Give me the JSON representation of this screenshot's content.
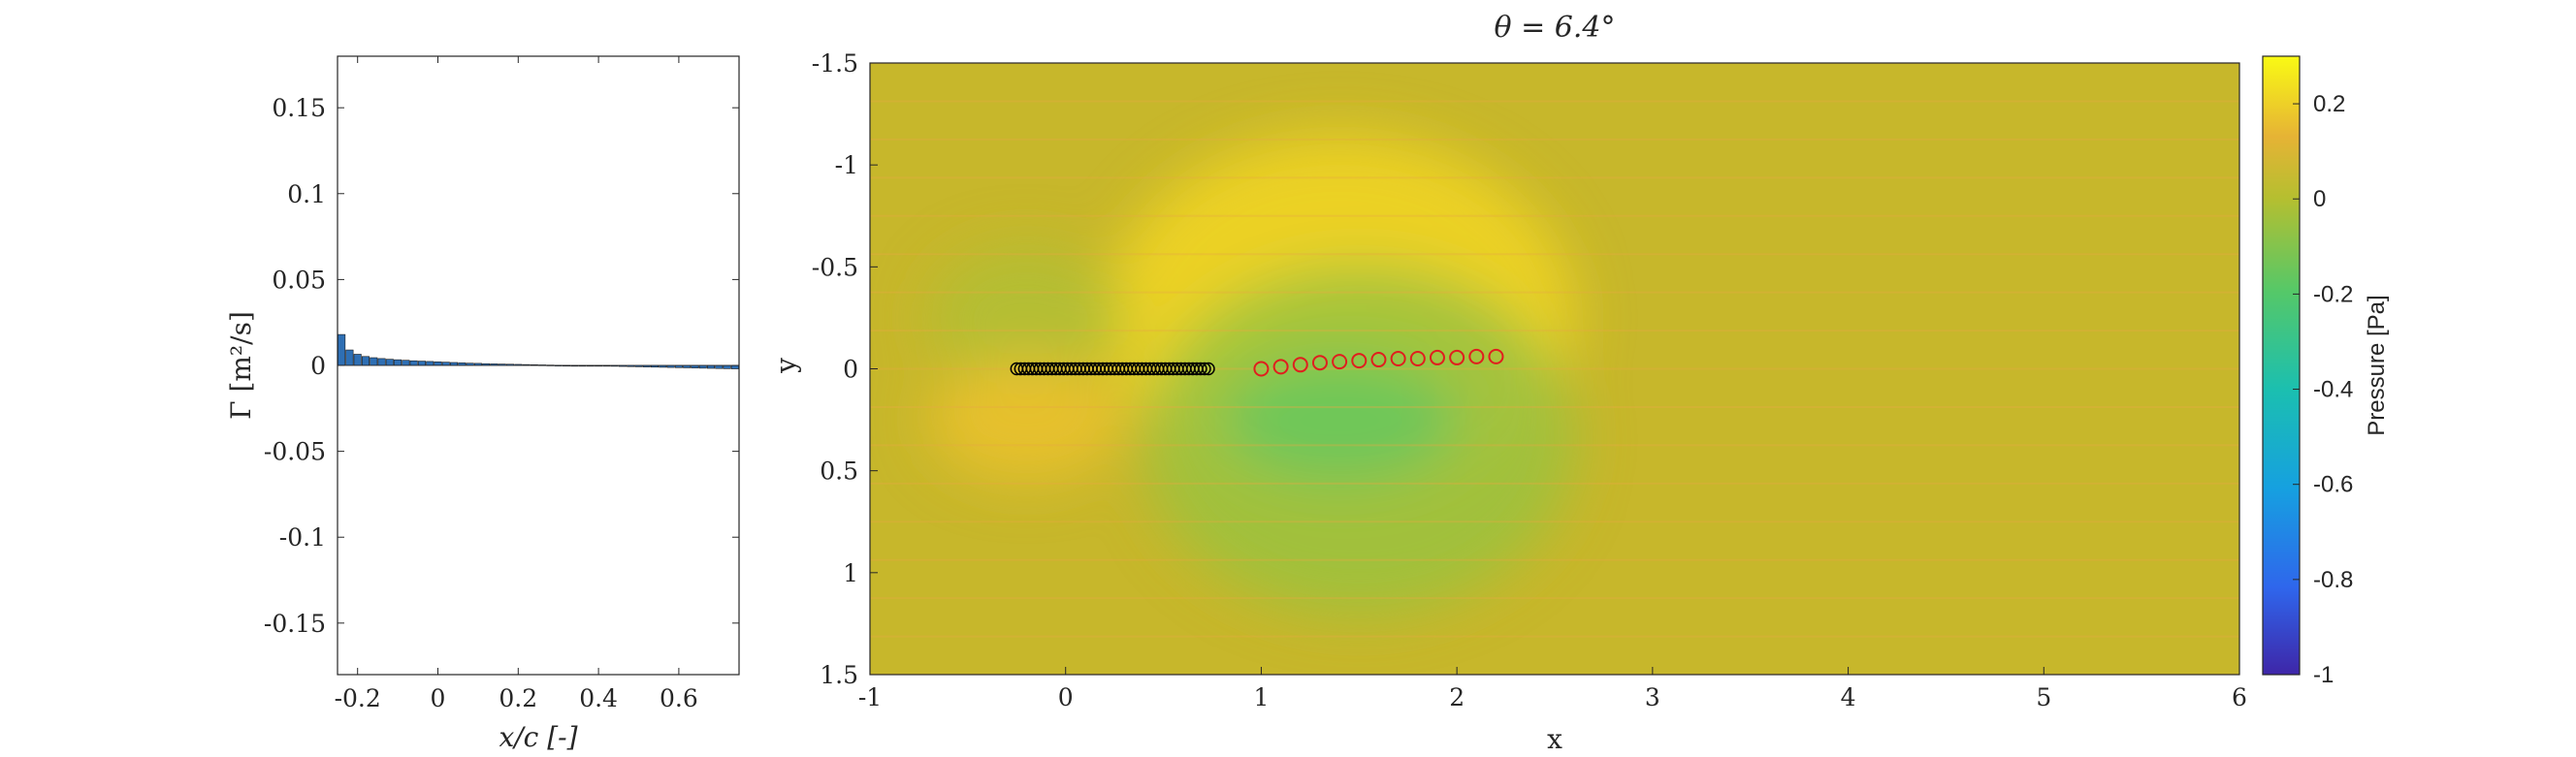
{
  "chart_data": [
    {
      "type": "bar",
      "xlabel": "x/c [-]",
      "ylabel": "Γ [m²/s]",
      "xlim": [
        -0.25,
        0.75
      ],
      "ylim": [
        -0.18,
        0.18
      ],
      "xticks": [
        "-0.2",
        "0",
        "0.2",
        "0.4",
        "0.6"
      ],
      "xtick_values": [
        -0.2,
        0,
        0.2,
        0.4,
        0.6
      ],
      "yticks": [
        "-0.15",
        "-0.1",
        "-0.05",
        "0",
        "0.05",
        "0.1",
        "0.15"
      ],
      "ytick_values": [
        -0.15,
        -0.1,
        -0.05,
        0,
        0.05,
        0.1,
        0.15
      ],
      "bar_color": "#2e6fb4",
      "x": [
        -0.24,
        -0.22,
        -0.2,
        -0.18,
        -0.16,
        -0.14,
        -0.12,
        -0.1,
        -0.08,
        -0.06,
        -0.04,
        -0.02,
        0.0,
        0.02,
        0.04,
        0.06,
        0.08,
        0.1,
        0.12,
        0.14,
        0.16,
        0.18,
        0.2,
        0.22,
        0.24,
        0.26,
        0.28,
        0.3,
        0.32,
        0.34,
        0.36,
        0.38,
        0.4,
        0.42,
        0.44,
        0.46,
        0.48,
        0.5,
        0.52,
        0.54,
        0.56,
        0.58,
        0.6,
        0.62,
        0.64,
        0.66,
        0.68,
        0.7,
        0.72,
        0.74
      ],
      "values": [
        0.018,
        0.009,
        0.0065,
        0.0052,
        0.0045,
        0.004,
        0.0036,
        0.0033,
        0.003,
        0.0027,
        0.0025,
        0.0023,
        0.0021,
        0.0019,
        0.0017,
        0.0015,
        0.0013,
        0.0012,
        0.001,
        0.0009,
        0.0008,
        0.0007,
        0.0006,
        0.0005,
        0.0004,
        0.0003,
        0.0002,
        0.0001,
        5e-05,
        0.0,
        -0.0001,
        -0.0002,
        -0.0003,
        -0.0004,
        -0.0005,
        -0.0006,
        -0.0007,
        -0.0008,
        -0.0009,
        -0.001,
        -0.0011,
        -0.0012,
        -0.0013,
        -0.0014,
        -0.0015,
        -0.0016,
        -0.0017,
        -0.0018,
        -0.0019,
        -0.002
      ]
    },
    {
      "type": "heatmap",
      "title": "θ = 6.4°",
      "xlabel": "x",
      "ylabel": "y",
      "xlim": [
        -1,
        6
      ],
      "ylim": [
        -1.5,
        1.5
      ],
      "y_reversed": true,
      "xticks": [
        "-1",
        "0",
        "1",
        "2",
        "3",
        "4",
        "5",
        "6"
      ],
      "xtick_values": [
        -1,
        0,
        1,
        2,
        3,
        4,
        5,
        6
      ],
      "yticks": [
        "-1.5",
        "-1",
        "-0.5",
        "0",
        "0.5",
        "1",
        "1.5"
      ],
      "ytick_values": [
        -1.5,
        -1,
        -0.5,
        0,
        0.5,
        1,
        1.5
      ],
      "colorbar": {
        "label": "Pressure [Pa]",
        "range": [
          -1,
          0.3
        ],
        "ticks": [
          "0.2",
          "0",
          "-0.2",
          "-0.4",
          "-0.6",
          "-0.8",
          "-1"
        ],
        "tick_values": [
          0.2,
          0,
          -0.2,
          -0.4,
          -0.6,
          -0.8,
          -1
        ],
        "colors": [
          "#3e26a8",
          "#2f66ec",
          "#16a0e0",
          "#1bbfb0",
          "#55c868",
          "#b5bf30",
          "#e6b335",
          "#f9fa14"
        ]
      },
      "background_color": "#c7b72b",
      "regions": [
        {
          "cx": 1.4,
          "cy": -0.25,
          "rx": 1.2,
          "ry": 0.9,
          "value": 0.2
        },
        {
          "cx": 1.3,
          "cy": -0.05,
          "rx": 0.7,
          "ry": 0.35,
          "value": 0.27
        },
        {
          "cx": 1.5,
          "cy": 0.35,
          "rx": 1.1,
          "ry": 0.85,
          "value": -0.12
        },
        {
          "cx": 1.4,
          "cy": 0.25,
          "rx": 0.6,
          "ry": 0.3,
          "value": -0.22
        },
        {
          "cx": -0.2,
          "cy": -0.25,
          "rx": 0.5,
          "ry": 0.35,
          "value": -0.08
        },
        {
          "cx": -0.2,
          "cy": 0.25,
          "rx": 0.5,
          "ry": 0.3,
          "value": 0.15
        }
      ],
      "bound_vortices": {
        "color": "#000000",
        "x": [
          -0.25,
          -0.23,
          -0.21,
          -0.19,
          -0.17,
          -0.15,
          -0.13,
          -0.11,
          -0.09,
          -0.07,
          -0.05,
          -0.03,
          -0.01,
          0.01,
          0.03,
          0.05,
          0.07,
          0.09,
          0.11,
          0.13,
          0.15,
          0.17,
          0.19,
          0.21,
          0.23,
          0.25,
          0.27,
          0.29,
          0.31,
          0.33,
          0.35,
          0.37,
          0.39,
          0.41,
          0.43,
          0.45,
          0.47,
          0.49,
          0.51,
          0.53,
          0.55,
          0.57,
          0.59,
          0.61,
          0.63,
          0.65,
          0.67,
          0.69,
          0.71,
          0.73
        ],
        "y": 0.0
      },
      "wake_vortices": {
        "color": "#e01e1e",
        "x": [
          1.0,
          1.1,
          1.2,
          1.3,
          1.4,
          1.5,
          1.6,
          1.7,
          1.8,
          1.9,
          2.0,
          2.1,
          2.2
        ],
        "y": [
          0.0,
          -0.01,
          -0.02,
          -0.03,
          -0.035,
          -0.04,
          -0.045,
          -0.05,
          -0.05,
          -0.055,
          -0.055,
          -0.06,
          -0.06
        ]
      }
    }
  ]
}
